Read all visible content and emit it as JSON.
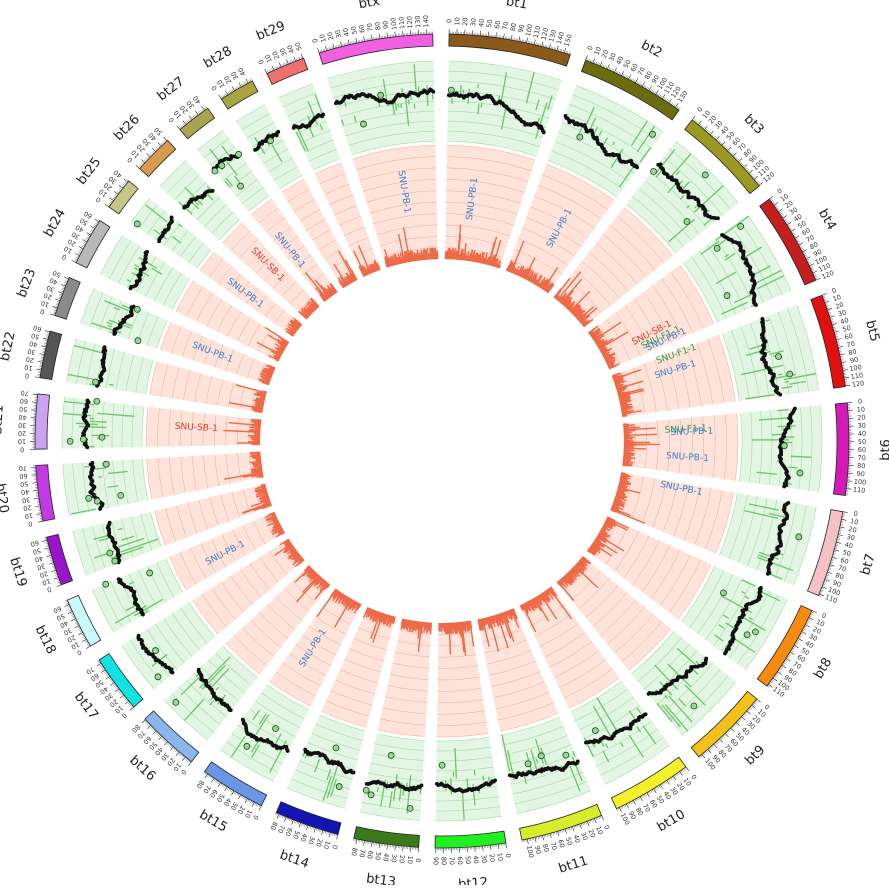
{
  "figure": {
    "type": "circos-genome-plot",
    "tracks": [
      "chromosome ideogram with Mb ticks",
      "green scatter/histogram track",
      "salmon histogram track",
      "sample annotation labels"
    ]
  },
  "chromosomes": [
    {
      "name": "bt1",
      "ticks": [
        "0",
        "10",
        "20",
        "30",
        "40",
        "50",
        "60",
        "70",
        "80",
        "90",
        "100",
        "110",
        "120",
        "130",
        "140",
        "150"
      ],
      "color": "#8B5A1A"
    },
    {
      "name": "bt2",
      "ticks": [
        "0",
        "10",
        "20",
        "30",
        "40",
        "50",
        "60",
        "70",
        "80",
        "90",
        "100",
        "110",
        "120",
        "130"
      ],
      "color": "#6B6B10"
    },
    {
      "name": "bt3",
      "ticks": [
        "0",
        "10",
        "20",
        "30",
        "40",
        "50",
        "60",
        "70",
        "80",
        "90",
        "100",
        "110",
        "120"
      ],
      "color": "#9A9A22"
    },
    {
      "name": "bt4",
      "ticks": [
        "0",
        "10",
        "20",
        "30",
        "40",
        "50",
        "60",
        "70",
        "80",
        "90",
        "100",
        "110",
        "120"
      ],
      "color": "#C41E1E"
    },
    {
      "name": "bt5",
      "ticks": [
        "0",
        "10",
        "20",
        "30",
        "40",
        "50",
        "60",
        "70",
        "80",
        "90",
        "100",
        "110",
        "120"
      ],
      "color": "#E01010"
    },
    {
      "name": "bt6",
      "ticks": [
        "0",
        "10",
        "20",
        "30",
        "40",
        "50",
        "60",
        "70",
        "80",
        "90",
        "100",
        "110"
      ],
      "color": "#D51AB8"
    },
    {
      "name": "bt7",
      "ticks": [
        "0",
        "10",
        "20",
        "30",
        "40",
        "50",
        "60",
        "70",
        "80",
        "90",
        "100",
        "110"
      ],
      "color": "#F4C2C2"
    },
    {
      "name": "bt8",
      "ticks": [
        "0",
        "10",
        "20",
        "30",
        "40",
        "50",
        "60",
        "70",
        "80",
        "90",
        "100",
        "110"
      ],
      "color": "#F68B10"
    },
    {
      "name": "bt9",
      "ticks": [
        "0",
        "10",
        "20",
        "30",
        "40",
        "50",
        "60",
        "70",
        "80",
        "90",
        "100"
      ],
      "color": "#F2C21A"
    },
    {
      "name": "bt10",
      "ticks": [
        "0",
        "10",
        "20",
        "30",
        "40",
        "50",
        "60",
        "70",
        "80",
        "90",
        "100"
      ],
      "color": "#F4F02A"
    },
    {
      "name": "bt11",
      "ticks": [
        "0",
        "10",
        "20",
        "30",
        "40",
        "50",
        "60",
        "70",
        "80",
        "90",
        "100"
      ],
      "color": "#D6EE2A"
    },
    {
      "name": "bt12",
      "ticks": [
        "0",
        "10",
        "20",
        "30",
        "40",
        "50",
        "60",
        "70",
        "80",
        "90"
      ],
      "color": "#22EE22"
    },
    {
      "name": "bt13",
      "ticks": [
        "0",
        "10",
        "20",
        "30",
        "40",
        "50",
        "60",
        "70",
        "80"
      ],
      "color": "#3A7A1A"
    },
    {
      "name": "bt14",
      "ticks": [
        "0",
        "10",
        "20",
        "30",
        "40",
        "50",
        "60",
        "70",
        "80"
      ],
      "color": "#1414B4"
    },
    {
      "name": "bt15",
      "ticks": [
        "0",
        "10",
        "20",
        "30",
        "40",
        "50",
        "60",
        "70",
        "80"
      ],
      "color": "#6A96E8"
    },
    {
      "name": "bt16",
      "ticks": [
        "0",
        "10",
        "20",
        "30",
        "40",
        "50",
        "60",
        "70",
        "80"
      ],
      "color": "#8AB6EC"
    },
    {
      "name": "bt17",
      "ticks": [
        "0",
        "10",
        "20",
        "30",
        "40",
        "50",
        "60",
        "70"
      ],
      "color": "#12E2E2"
    },
    {
      "name": "bt18",
      "ticks": [
        "0",
        "10",
        "20",
        "30",
        "40",
        "50",
        "60"
      ],
      "color": "#C8FAFA"
    },
    {
      "name": "bt19",
      "ticks": [
        "0",
        "10",
        "20",
        "30",
        "40",
        "50",
        "60"
      ],
      "color": "#9A14C8"
    },
    {
      "name": "bt20",
      "ticks": [
        "0",
        "10",
        "20",
        "30",
        "40",
        "50",
        "60",
        "70"
      ],
      "color": "#C23AE2"
    },
    {
      "name": "bt21",
      "ticks": [
        "0",
        "10",
        "20",
        "30",
        "40",
        "50",
        "60",
        "70"
      ],
      "color": "#CCA2F2"
    },
    {
      "name": "bt22",
      "ticks": [
        "0",
        "10",
        "20",
        "30",
        "40",
        "50",
        "60"
      ],
      "color": "#555555"
    },
    {
      "name": "bt23",
      "ticks": [
        "0",
        "10",
        "20",
        "30",
        "40",
        "50"
      ],
      "color": "#8A8A8A"
    },
    {
      "name": "bt24",
      "ticks": [
        "0",
        "10",
        "20",
        "30",
        "40",
        "50",
        "60"
      ],
      "color": "#B8B8B8"
    },
    {
      "name": "bt25",
      "ticks": [
        "0",
        "10",
        "20",
        "30",
        "40"
      ],
      "color": "#C6C686"
    },
    {
      "name": "bt26",
      "ticks": [
        "0",
        "10",
        "20",
        "30",
        "40",
        "50"
      ],
      "color": "#D99A50"
    },
    {
      "name": "bt27",
      "ticks": [
        "0",
        "10",
        "20",
        "30",
        "40"
      ],
      "color": "#A8A450"
    },
    {
      "name": "bt28",
      "ticks": [
        "0",
        "10",
        "20",
        "30",
        "40"
      ],
      "color": "#A8A440"
    },
    {
      "name": "bt29",
      "ticks": [
        "0",
        "10",
        "20",
        "30",
        "40",
        "50"
      ],
      "color": "#F07070"
    },
    {
      "name": "btx",
      "ticks": [
        "0",
        "10",
        "20",
        "30",
        "40",
        "50",
        "60",
        "70",
        "80",
        "90",
        "100",
        "110",
        "120",
        "130",
        "140"
      ],
      "color": "#F060E0"
    }
  ],
  "annotations": [
    {
      "text": "SNU-PB-1",
      "color": "#3A7FC8"
    },
    {
      "text": "SNU-PB-1",
      "color": "#3A7FC8"
    },
    {
      "text": "SNU-PB-1",
      "color": "#3A7FC8"
    },
    {
      "text": "SNU-SB-1",
      "color": "#E23A2A"
    },
    {
      "text": "SNU-F1-1",
      "color": "#2E9A3A"
    },
    {
      "text": "SNU-PB-1",
      "color": "#3A7FC8"
    },
    {
      "text": "SNU-F1-1",
      "color": "#2E9A3A"
    },
    {
      "text": "SNU-PB-1",
      "color": "#3A7FC8"
    },
    {
      "text": "SNU-F1-1",
      "color": "#2E9A3A"
    },
    {
      "text": "SNU-PB-1",
      "color": "#3A7FC8"
    },
    {
      "text": "SNU-PB-1",
      "color": "#3A7FC8"
    },
    {
      "text": "SNU-PB-1",
      "color": "#3A7FC8"
    },
    {
      "text": "SNU-PB-1",
      "color": "#3A7FC8"
    },
    {
      "text": "SNU-PB-1",
      "color": "#3A7FC8"
    },
    {
      "text": "SNU-SB-1",
      "color": "#E23A2A"
    },
    {
      "text": "SNU-PB-1",
      "color": "#3A7FC8"
    },
    {
      "text": "SNU-PB-1",
      "color": "#3A7FC8"
    },
    {
      "text": "SNU-SB-1",
      "color": "#E23A2A"
    },
    {
      "text": "SNU-PB-1",
      "color": "#3A7FC8"
    }
  ],
  "colors": {
    "green_track_bg": "#E3F5E3",
    "green_track_line": "#A8DCA8",
    "green_bars": "#6CC46C",
    "scatter_points": "#111111",
    "red_track_bg": "#FDE3DA",
    "red_track_line": "#F6A994",
    "red_bars": "#EE6A48"
  }
}
